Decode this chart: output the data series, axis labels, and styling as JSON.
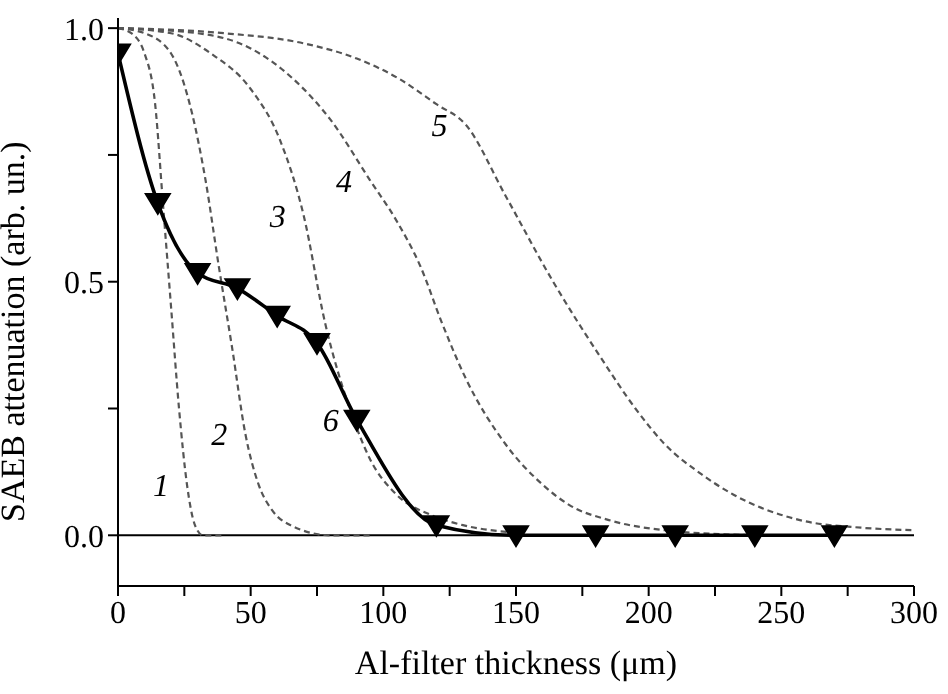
{
  "chart_data": {
    "type": "line",
    "xlabel": "Al-filter thickness  (μm)",
    "ylabel": "SAEB attenuation (arb. un.)",
    "xlim": [
      0,
      300
    ],
    "ylim": [
      -0.1,
      1.02
    ],
    "xticks": [
      0,
      {
        "value": 25,
        "label": null
      },
      50,
      {
        "value": 75,
        "label": null
      },
      100,
      {
        "value": 125,
        "label": null
      },
      150,
      {
        "value": 175,
        "label": null
      },
      200,
      {
        "value": 225,
        "label": null
      },
      250,
      {
        "value": 275,
        "label": null
      },
      300
    ],
    "yticks": [
      {
        "value": 0,
        "label": "0.0"
      },
      {
        "value": 0.25,
        "label": null
      },
      0.5,
      {
        "value": 0.75,
        "label": null
      },
      {
        "value": 1,
        "label": "1.0"
      }
    ],
    "grid": false,
    "legend": false,
    "ref_lines": [
      {
        "axis": "y",
        "value": 0,
        "color": "#000000",
        "line_style": "solid"
      }
    ],
    "series": [
      {
        "color": "#555555",
        "line_style": "dashed",
        "marker": "none",
        "x": [
          0,
          5,
          10,
          14,
          17,
          20,
          23,
          26,
          29,
          32,
          40
        ],
        "values": [
          1,
          0.99,
          0.95,
          0.85,
          0.65,
          0.45,
          0.25,
          0.1,
          0.02,
          0,
          0
        ]
      },
      {
        "color": "#555555",
        "line_style": "dashed",
        "marker": "none",
        "x": [
          0,
          10,
          20,
          28,
          33,
          38,
          43,
          48,
          53,
          58,
          65,
          80,
          95
        ],
        "values": [
          1,
          0.99,
          0.95,
          0.83,
          0.7,
          0.53,
          0.37,
          0.2,
          0.1,
          0.05,
          0.02,
          0,
          0
        ]
      },
      {
        "color": "#555555",
        "line_style": "dashed",
        "marker": "none",
        "x": [
          0,
          20,
          35,
          50,
          61,
          70,
          78,
          88,
          95,
          105,
          118,
          130,
          150
        ],
        "values": [
          1,
          0.99,
          0.95,
          0.88,
          0.78,
          0.63,
          0.42,
          0.24,
          0.15,
          0.08,
          0.04,
          0.02,
          0.005
        ]
      },
      {
        "color": "#555555",
        "line_style": "dashed",
        "marker": "none",
        "x": [
          0,
          30,
          50,
          66,
          80,
          95,
          105,
          114,
          122,
          131,
          146,
          160,
          170,
          185,
          206,
          240
        ],
        "values": [
          1,
          0.99,
          0.96,
          0.9,
          0.82,
          0.7,
          0.62,
          0.53,
          0.42,
          0.31,
          0.18,
          0.1,
          0.06,
          0.03,
          0.01,
          0
        ]
      },
      {
        "color": "#555555",
        "line_style": "dashed",
        "marker": "none",
        "x": [
          0,
          40,
          70,
          90,
          106,
          120,
          131,
          146,
          164,
          182,
          195,
          206,
          220,
          232,
          257,
          280,
          300
        ],
        "values": [
          1,
          0.99,
          0.97,
          0.94,
          0.9,
          0.85,
          0.81,
          0.67,
          0.5,
          0.35,
          0.25,
          0.18,
          0.12,
          0.08,
          0.03,
          0.015,
          0.01
        ]
      },
      {
        "color": "#000000",
        "line_style": "solid",
        "marker": "triangle",
        "x": [
          0,
          15,
          30,
          45,
          60,
          75,
          90,
          120,
          150,
          180,
          210,
          240,
          270
        ],
        "values": [
          0.95,
          0.655,
          0.517,
          0.487,
          0.433,
          0.379,
          0.228,
          0.02,
          0,
          0,
          0,
          0,
          0
        ]
      }
    ],
    "annotations": [
      {
        "text": "1",
        "x": 26,
        "y": 0.1
      },
      {
        "text": "2",
        "x": 48,
        "y": 0.2
      },
      {
        "text": "3",
        "x": 70,
        "y": 0.63
      },
      {
        "text": "4",
        "x": 95,
        "y": 0.7
      },
      {
        "text": "5",
        "x": 131,
        "y": 0.81
      },
      {
        "text": "6",
        "x": 90,
        "y": 0.228
      }
    ]
  }
}
